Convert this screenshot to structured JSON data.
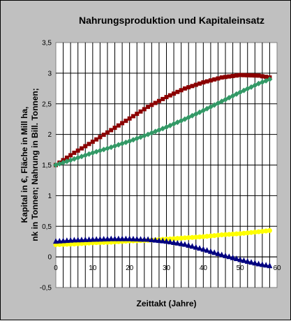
{
  "chart_data": {
    "type": "line",
    "title": "Nahrungsproduktion und Kapitaleinsatz",
    "xlabel": "Zeittakt (Jahre)",
    "ylabel_lines": [
      "Kapital in €, Fläche in Mill ha,",
      "nk in Tonnen; Nahrung in Bill. Tonnen;"
    ],
    "xlim": [
      0,
      60
    ],
    "ylim": [
      -0.5,
      3.5
    ],
    "x_ticks": [
      "0",
      "10",
      "20",
      "30",
      "40",
      "50",
      "60"
    ],
    "y_ticks": [
      "-0,5",
      "0",
      "0,5",
      "1",
      "1,5",
      "2",
      "2,5",
      "3",
      "3,5"
    ],
    "grid": true,
    "x": [
      0,
      5,
      10,
      15,
      20,
      25,
      30,
      35,
      40,
      45,
      50,
      55,
      58
    ],
    "series": [
      {
        "color": "#8b0000",
        "marker": "square",
        "values": [
          1.5,
          1.7,
          1.88,
          2.07,
          2.26,
          2.45,
          2.61,
          2.75,
          2.85,
          2.93,
          2.97,
          2.96,
          2.93
        ]
      },
      {
        "color": "#339966",
        "marker": "diamond",
        "values": [
          1.5,
          1.6,
          1.7,
          1.79,
          1.89,
          2.0,
          2.12,
          2.25,
          2.39,
          2.54,
          2.69,
          2.83,
          2.9
        ]
      },
      {
        "color": "#ffff00",
        "marker": "circle",
        "values": [
          0.2,
          0.21,
          0.23,
          0.24,
          0.26,
          0.27,
          0.29,
          0.31,
          0.33,
          0.36,
          0.38,
          0.41,
          0.43
        ]
      },
      {
        "color": "#000080",
        "marker": "triangle",
        "values": [
          0.25,
          0.27,
          0.28,
          0.29,
          0.29,
          0.28,
          0.25,
          0.2,
          0.12,
          0.03,
          -0.05,
          -0.12,
          -0.15
        ]
      }
    ]
  }
}
